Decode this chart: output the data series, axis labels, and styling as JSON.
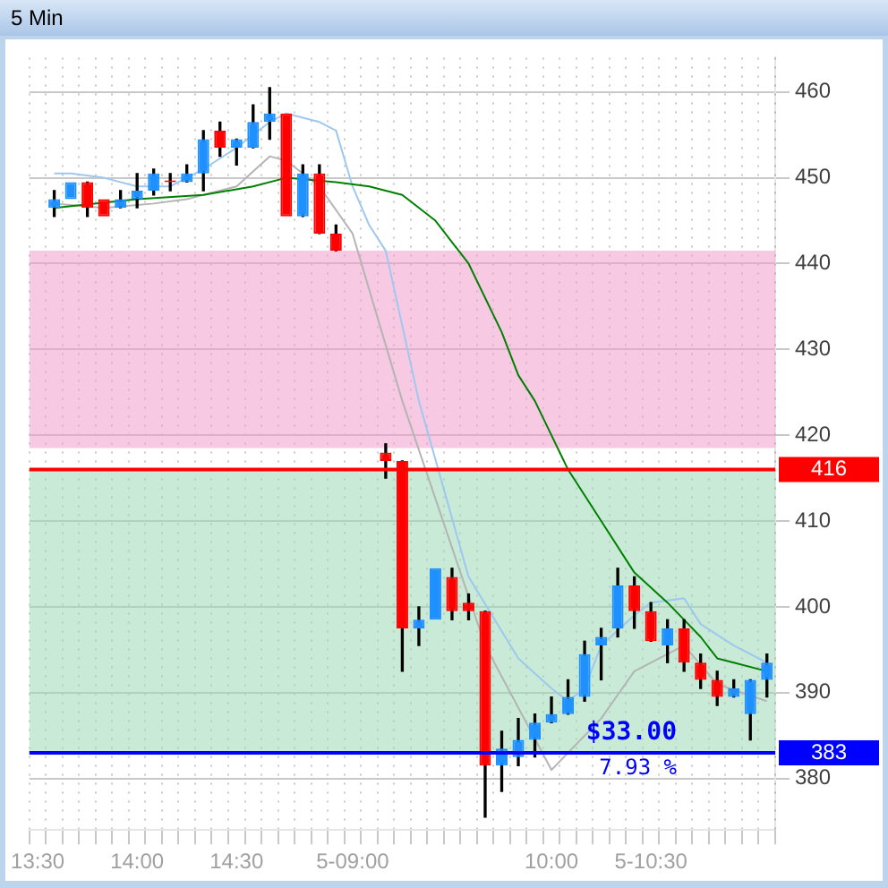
{
  "chart_data": {
    "type": "candlestick",
    "title": "5 Min",
    "categories": [
      "13:30",
      null,
      null,
      null,
      null,
      null,
      "14:00",
      null,
      null,
      null,
      null,
      null,
      "14:30",
      null,
      null,
      null,
      null,
      null,
      null,
      "5-09:00",
      null,
      null,
      null,
      null,
      null,
      null,
      null,
      null,
      null,
      null,
      null,
      "10:00",
      null,
      null,
      null,
      null,
      null,
      "5-10:30",
      null,
      null,
      null,
      null,
      null,
      null,
      null
    ],
    "ohlc": [
      null,
      [
        446.5,
        448.5,
        445.5,
        447.5
      ],
      [
        447.5,
        449.5,
        447.5,
        449.5
      ],
      [
        449.5,
        449.5,
        445.5,
        446.5
      ],
      [
        447.5,
        447.5,
        445.5,
        445.5
      ],
      [
        446.5,
        448.5,
        446.5,
        447.5
      ],
      [
        447.5,
        450.5,
        446.5,
        448.5
      ],
      [
        448.5,
        451,
        448,
        450.5
      ],
      [
        449.5,
        450.5,
        448.5,
        449.5
      ],
      [
        449.5,
        451.5,
        449.5,
        450.5
      ],
      [
        450.5,
        455.5,
        448.5,
        454.5
      ],
      [
        455.5,
        456.5,
        452.5,
        453.5
      ],
      [
        453.5,
        454.5,
        451.5,
        454.5
      ],
      [
        453.5,
        458.5,
        453.5,
        456.5
      ],
      [
        456.5,
        460.5,
        454.5,
        457.5
      ],
      [
        457.5,
        457.5,
        445.5,
        445.5
      ],
      [
        445.5,
        451.5,
        445.5,
        450.5
      ],
      [
        450.5,
        451.5,
        443.5,
        443.5
      ],
      [
        443.5,
        444.5,
        441.5,
        441.5
      ],
      null,
      null,
      [
        418,
        419,
        415,
        417
      ],
      [
        417,
        417,
        392.5,
        397.5
      ],
      [
        397.5,
        400,
        395.5,
        398.5
      ],
      [
        398.5,
        404.5,
        398.5,
        404.5
      ],
      [
        403.5,
        404.5,
        398.5,
        399.5
      ],
      [
        400.5,
        401.5,
        398.5,
        399.5
      ],
      [
        399.5,
        399.5,
        375.5,
        381.5
      ],
      [
        381.5,
        385.5,
        378.5,
        383.5
      ],
      [
        382.5,
        387,
        381.5,
        384.5
      ],
      [
        384.5,
        387.5,
        382.5,
        386.5
      ],
      [
        386.5,
        389.5,
        386.5,
        387.5
      ],
      [
        387.5,
        391.5,
        387.5,
        389.5
      ],
      [
        389.5,
        396,
        389,
        394.5
      ],
      [
        395.5,
        397.5,
        391.5,
        396.5
      ],
      [
        397.5,
        404.5,
        396.5,
        402.5
      ],
      [
        402.5,
        403.5,
        397.5,
        399.5
      ],
      [
        399.5,
        400.5,
        396,
        396
      ],
      [
        395.5,
        398.5,
        393.5,
        397.5
      ],
      [
        397.5,
        398.5,
        392.5,
        393.5
      ],
      [
        393.5,
        394.5,
        390.5,
        391.5
      ],
      [
        391.5,
        392.5,
        388.5,
        389.5
      ],
      [
        389.5,
        391.5,
        389.5,
        390.5
      ],
      [
        387.5,
        391.5,
        384.5,
        391.5
      ],
      [
        391.5,
        394.5,
        389.5,
        393.5
      ]
    ],
    "colors": [
      null,
      "#1e90ff",
      "#1e90ff",
      "#ff0000",
      "#ff0000",
      "#1e90ff",
      "#1e90ff",
      "#1e90ff",
      "#ff0000",
      "#1e90ff",
      "#1e90ff",
      "#ff0000",
      "#1e90ff",
      "#1e90ff",
      "#1e90ff",
      "#ff0000",
      "#1e90ff",
      "#ff0000",
      "#ff0000",
      null,
      null,
      "#ff0000",
      "#ff0000",
      "#1e90ff",
      "#1e90ff",
      "#ff0000",
      "#ff0000",
      "#ff0000",
      "#1e90ff",
      "#1e90ff",
      "#1e90ff",
      "#1e90ff",
      "#1e90ff",
      "#1e90ff",
      "#1e90ff",
      "#1e90ff",
      "#ff0000",
      "#ff0000",
      "#1e90ff",
      "#ff0000",
      "#ff0000",
      "#ff0000",
      "#1e90ff",
      "#1e90ff",
      "#1e90ff"
    ],
    "series": [
      {
        "type": "line",
        "color": "#008000",
        "values": [
          null,
          446.5,
          null,
          null,
          null,
          null,
          447.5,
          null,
          null,
          null,
          448,
          null,
          null,
          449,
          null,
          450,
          null,
          null,
          449.5,
          null,
          449,
          null,
          448,
          null,
          445,
          null,
          440,
          null,
          432,
          427,
          424,
          null,
          416,
          null,
          410,
          null,
          404,
          null,
          400.5,
          null,
          396.5,
          394,
          393.5,
          null,
          392.5
        ]
      },
      {
        "type": "line",
        "color": "#9ec8f0",
        "values": [
          null,
          450.5,
          450.5,
          null,
          450,
          null,
          449,
          null,
          449,
          null,
          451,
          null,
          453.5,
          null,
          456.5,
          457.5,
          null,
          456.5,
          455.5,
          449,
          444.5,
          441.5,
          null,
          424,
          null,
          null,
          403.5,
          null,
          null,
          394,
          null,
          390.5,
          389,
          390.5,
          395.5,
          null,
          399,
          400.5,
          null,
          401,
          398,
          null,
          395.5,
          null,
          393.5
        ]
      },
      {
        "type": "line",
        "color": "#b4b4b4",
        "values": [
          null,
          447,
          null,
          null,
          446.5,
          null,
          null,
          447,
          null,
          447.5,
          null,
          null,
          449,
          null,
          452.5,
          452,
          null,
          449,
          null,
          443.5,
          null,
          null,
          424,
          null,
          null,
          null,
          null,
          395.5,
          null,
          null,
          null,
          381,
          null,
          null,
          387,
          null,
          392.5,
          null,
          null,
          395.5,
          null,
          391,
          null,
          null,
          389
        ]
      }
    ],
    "ylim": [
      374,
      464
    ],
    "yticks": [
      380,
      390,
      400,
      410,
      420,
      430,
      440,
      450,
      460
    ],
    "grid": true,
    "marker": "none",
    "ref_lines": [
      {
        "axis": "y",
        "value": 416,
        "label": "416",
        "color": "#ff0000"
      },
      {
        "axis": "y",
        "value": 383,
        "label": "383",
        "color": "#0000ff"
      }
    ],
    "bands": [
      {
        "axis": "y",
        "from": 418.5,
        "to": 441.5,
        "color": "#f09ccc"
      },
      {
        "axis": "y",
        "from": 383,
        "to": 416,
        "color": "#9ad9b4"
      }
    ],
    "annotations": [
      {
        "text": "$33.00",
        "y": 383
      },
      {
        "text": "7.93 %",
        "y": 383
      }
    ]
  }
}
